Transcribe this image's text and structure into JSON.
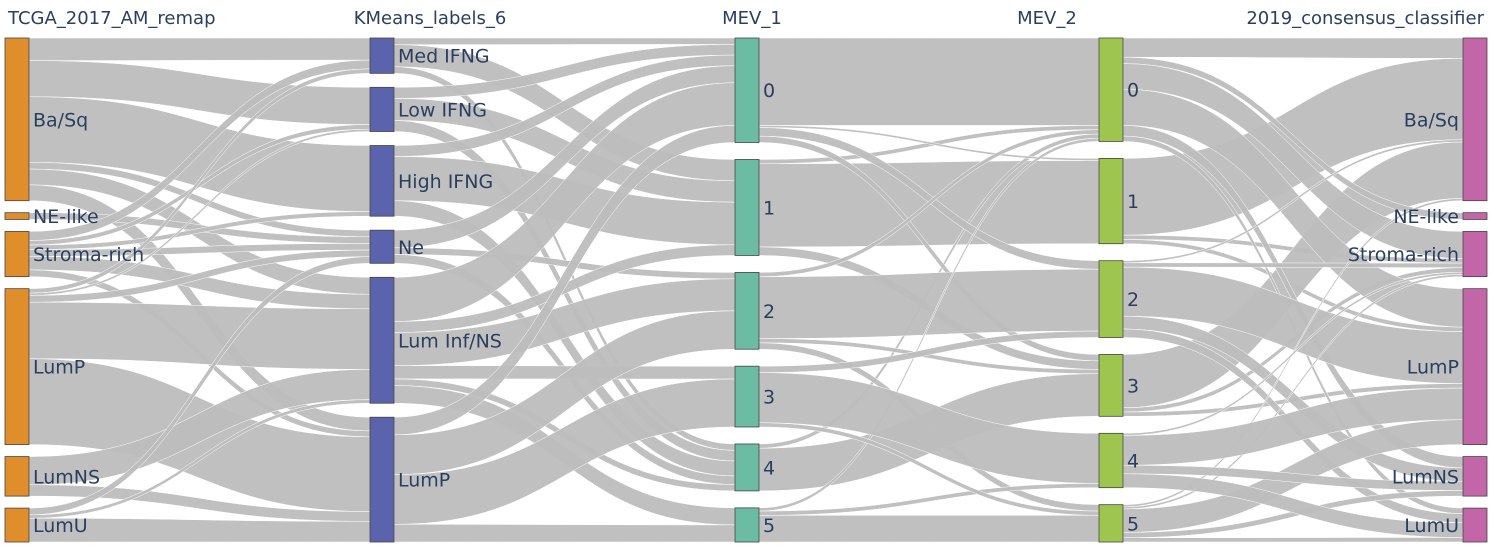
{
  "chart_data": {
    "type": "sankey",
    "columns": [
      "TCGA_2017_AM_remap",
      "KMeans_labels_6",
      "MEV_1",
      "MEV_2",
      "2019_consensus_classifier"
    ],
    "column_colors": [
      "#e08e2b",
      "#5b63ad",
      "#6cbba3",
      "#9ec64f",
      "#c366a8"
    ],
    "node_values": [
      {
        "Ba/Sq": 144,
        "NE-like": 6,
        "Stroma-rich": 40,
        "LumP": 138,
        "LumNS": 35,
        "LumU": 30
      },
      {
        "Med IFNG": 32,
        "Low IFNG": 40,
        "High IFNG": 64,
        "Ne": 30,
        "Lum Inf/NS": 114,
        "LumP": 113
      },
      {
        "1": 90,
        "4": 44,
        "0": 98,
        "2": 72,
        "5": 32,
        "3": 57
      },
      {
        "1": 80,
        "3": 58,
        "0": 97,
        "2": 72,
        "5": 35,
        "4": 51
      },
      {
        "Ba/Sq": 144,
        "NE-like": 6,
        "Stroma-rich": 40,
        "LumP": 138,
        "LumNS": 35,
        "LumU": 30
      }
    ],
    "flows": [
      {
        "stage": 0,
        "from": "Ba/Sq",
        "to": "Med IFNG",
        "value": 20
      },
      {
        "stage": 0,
        "from": "Ba/Sq",
        "to": "Low IFNG",
        "value": 32
      },
      {
        "stage": 0,
        "from": "Ba/Sq",
        "to": "High IFNG",
        "value": 58
      },
      {
        "stage": 0,
        "from": "Ba/Sq",
        "to": "Ne",
        "value": 6
      },
      {
        "stage": 0,
        "from": "Ba/Sq",
        "to": "Lum Inf/NS",
        "value": 14
      },
      {
        "stage": 0,
        "from": "Ba/Sq",
        "to": "LumP",
        "value": 14
      },
      {
        "stage": 0,
        "from": "NE-like",
        "to": "Ne",
        "value": 6
      },
      {
        "stage": 0,
        "from": "Stroma-rich",
        "to": "Med IFNG",
        "value": 8
      },
      {
        "stage": 0,
        "from": "Stroma-rich",
        "to": "Low IFNG",
        "value": 4
      },
      {
        "stage": 0,
        "from": "Stroma-rich",
        "to": "High IFNG",
        "value": 4
      },
      {
        "stage": 0,
        "from": "Stroma-rich",
        "to": "Ne",
        "value": 6
      },
      {
        "stage": 0,
        "from": "Stroma-rich",
        "to": "Lum Inf/NS",
        "value": 12
      },
      {
        "stage": 0,
        "from": "Stroma-rich",
        "to": "LumP",
        "value": 6
      },
      {
        "stage": 0,
        "from": "LumP",
        "to": "Med IFNG",
        "value": 4
      },
      {
        "stage": 0,
        "from": "LumP",
        "to": "Low IFNG",
        "value": 2
      },
      {
        "stage": 0,
        "from": "LumP",
        "to": "Ne",
        "value": 6
      },
      {
        "stage": 0,
        "from": "LumP",
        "to": "Lum Inf/NS",
        "value": 50
      },
      {
        "stage": 0,
        "from": "LumP",
        "to": "LumP",
        "value": 76
      },
      {
        "stage": 0,
        "from": "LumNS",
        "to": "Lum Inf/NS",
        "value": 25
      },
      {
        "stage": 0,
        "from": "LumNS",
        "to": "LumP",
        "value": 10
      },
      {
        "stage": 0,
        "from": "LumU",
        "to": "Lum Inf/NS",
        "value": 3
      },
      {
        "stage": 0,
        "from": "LumU",
        "to": "Ne",
        "value": 6
      },
      {
        "stage": 0,
        "from": "LumU",
        "to": "LumP",
        "value": 21
      },
      {
        "stage": 1,
        "from": "Med IFNG",
        "to": "1",
        "value": 20
      },
      {
        "stage": 1,
        "from": "Med IFNG",
        "to": "4",
        "value": 6
      },
      {
        "stage": 1,
        "from": "Med IFNG",
        "to": "0",
        "value": 6
      },
      {
        "stage": 1,
        "from": "Low IFNG",
        "to": "1",
        "value": 20
      },
      {
        "stage": 1,
        "from": "Low IFNG",
        "to": "4",
        "value": 10
      },
      {
        "stage": 1,
        "from": "Low IFNG",
        "to": "0",
        "value": 10
      },
      {
        "stage": 1,
        "from": "High IFNG",
        "to": "1",
        "value": 40
      },
      {
        "stage": 1,
        "from": "High IFNG",
        "to": "4",
        "value": 14
      },
      {
        "stage": 1,
        "from": "High IFNG",
        "to": "0",
        "value": 10
      },
      {
        "stage": 1,
        "from": "Ne",
        "to": "4",
        "value": 8
      },
      {
        "stage": 1,
        "from": "Ne",
        "to": "0",
        "value": 16
      },
      {
        "stage": 1,
        "from": "Ne",
        "to": "2",
        "value": 6
      },
      {
        "stage": 1,
        "from": "Lum Inf/NS",
        "to": "1",
        "value": 10
      },
      {
        "stage": 1,
        "from": "Lum Inf/NS",
        "to": "4",
        "value": 6
      },
      {
        "stage": 1,
        "from": "Lum Inf/NS",
        "to": "0",
        "value": 40
      },
      {
        "stage": 1,
        "from": "Lum Inf/NS",
        "to": "2",
        "value": 30
      },
      {
        "stage": 1,
        "from": "Lum Inf/NS",
        "to": "5",
        "value": 16
      },
      {
        "stage": 1,
        "from": "Lum Inf/NS",
        "to": "3",
        "value": 12
      },
      {
        "stage": 1,
        "from": "LumP",
        "to": "0",
        "value": 16
      },
      {
        "stage": 1,
        "from": "LumP",
        "to": "2",
        "value": 36
      },
      {
        "stage": 1,
        "from": "LumP",
        "to": "5",
        "value": 16
      },
      {
        "stage": 1,
        "from": "LumP",
        "to": "3",
        "value": 45
      },
      {
        "stage": 2,
        "from": "1",
        "to": "1",
        "value": 78
      },
      {
        "stage": 2,
        "from": "1",
        "to": "3",
        "value": 8
      },
      {
        "stage": 2,
        "from": "1",
        "to": "0",
        "value": 4
      },
      {
        "stage": 2,
        "from": "4",
        "to": "3",
        "value": 40
      },
      {
        "stage": 2,
        "from": "4",
        "to": "0",
        "value": 4
      },
      {
        "stage": 2,
        "from": "0",
        "to": "1",
        "value": 2
      },
      {
        "stage": 2,
        "from": "0",
        "to": "3",
        "value": 6
      },
      {
        "stage": 2,
        "from": "0",
        "to": "0",
        "value": 82
      },
      {
        "stage": 2,
        "from": "0",
        "to": "2",
        "value": 8
      },
      {
        "stage": 2,
        "from": "2",
        "to": "3",
        "value": 4
      },
      {
        "stage": 2,
        "from": "2",
        "to": "0",
        "value": 4
      },
      {
        "stage": 2,
        "from": "2",
        "to": "2",
        "value": 58
      },
      {
        "stage": 2,
        "from": "2",
        "to": "5",
        "value": 6
      },
      {
        "stage": 2,
        "from": "5",
        "to": "0",
        "value": 3
      },
      {
        "stage": 2,
        "from": "5",
        "to": "5",
        "value": 25
      },
      {
        "stage": 2,
        "from": "5",
        "to": "4",
        "value": 4
      },
      {
        "stage": 2,
        "from": "3",
        "to": "2",
        "value": 6
      },
      {
        "stage": 2,
        "from": "3",
        "to": "5",
        "value": 4
      },
      {
        "stage": 2,
        "from": "3",
        "to": "4",
        "value": 47
      },
      {
        "stage": 3,
        "from": "1",
        "to": "Ba/Sq",
        "value": 72
      },
      {
        "stage": 3,
        "from": "1",
        "to": "Stroma-rich",
        "value": 4
      },
      {
        "stage": 3,
        "from": "1",
        "to": "LumP",
        "value": 4
      },
      {
        "stage": 3,
        "from": "3",
        "to": "Ba/Sq",
        "value": 50
      },
      {
        "stage": 3,
        "from": "3",
        "to": "Stroma-rich",
        "value": 4
      },
      {
        "stage": 3,
        "from": "3",
        "to": "LumP",
        "value": 4
      },
      {
        "stage": 3,
        "from": "0",
        "to": "Ba/Sq",
        "value": 18
      },
      {
        "stage": 3,
        "from": "0",
        "to": "NE-like",
        "value": 6
      },
      {
        "stage": 3,
        "from": "0",
        "to": "Stroma-rich",
        "value": 24
      },
      {
        "stage": 3,
        "from": "0",
        "to": "LumP",
        "value": 34
      },
      {
        "stage": 3,
        "from": "0",
        "to": "LumNS",
        "value": 10
      },
      {
        "stage": 3,
        "from": "0",
        "to": "LumU",
        "value": 5
      },
      {
        "stage": 3,
        "from": "2",
        "to": "Ba/Sq",
        "value": 2
      },
      {
        "stage": 3,
        "from": "2",
        "to": "Stroma-rich",
        "value": 4
      },
      {
        "stage": 3,
        "from": "2",
        "to": "LumP",
        "value": 46
      },
      {
        "stage": 3,
        "from": "2",
        "to": "LumNS",
        "value": 12
      },
      {
        "stage": 3,
        "from": "2",
        "to": "LumU",
        "value": 8
      },
      {
        "stage": 3,
        "from": "5",
        "to": "Ba/Sq",
        "value": 2
      },
      {
        "stage": 3,
        "from": "5",
        "to": "Stroma-rich",
        "value": 2
      },
      {
        "stage": 3,
        "from": "5",
        "to": "LumP",
        "value": 22
      },
      {
        "stage": 3,
        "from": "5",
        "to": "LumNS",
        "value": 5
      },
      {
        "stage": 3,
        "from": "5",
        "to": "LumU",
        "value": 4
      },
      {
        "stage": 3,
        "from": "4",
        "to": "Stroma-rich",
        "value": 2
      },
      {
        "stage": 3,
        "from": "4",
        "to": "LumP",
        "value": 28
      },
      {
        "stage": 3,
        "from": "4",
        "to": "LumNS",
        "value": 8
      },
      {
        "stage": 3,
        "from": "4",
        "to": "LumU",
        "value": 13
      }
    ]
  }
}
